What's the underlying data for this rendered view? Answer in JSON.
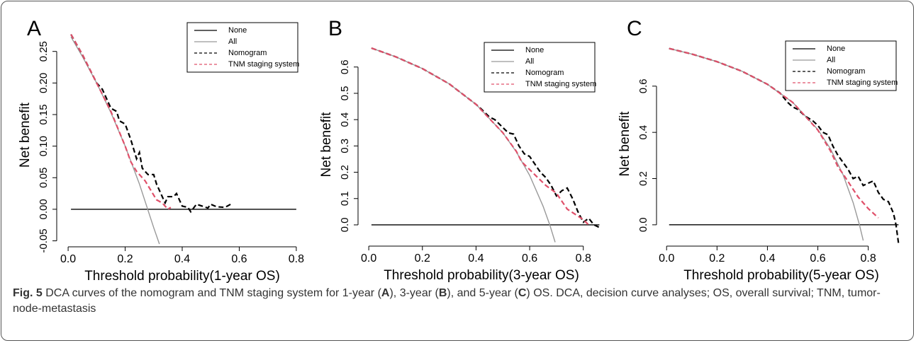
{
  "chart_data": [
    {
      "type": "line",
      "panel": "A",
      "xlabel": "Threshold probability(1-year OS)",
      "ylabel": "Net benefit",
      "xlim": [
        -0.04,
        0.84
      ],
      "ylim": [
        -0.055,
        0.29
      ],
      "xticks": [
        {
          "value": 0,
          "label": "0.0"
        },
        0.2,
        0.4,
        0.6,
        0.8
      ],
      "yticks": [
        -0.05,
        {
          "value": 0,
          "label": "0.00"
        },
        0.05,
        {
          "value": 0.1,
          "label": "0.10"
        },
        0.15,
        {
          "value": 0.2,
          "label": "0.20"
        },
        0.25
      ],
      "series": [
        {
          "name": "None",
          "color": "#000000",
          "dash": false,
          "x": [
            0.01,
            0.8
          ],
          "values": [
            0,
            0
          ]
        },
        {
          "name": "All",
          "color": "#999999",
          "dash": false,
          "x": [
            0.01,
            0.05,
            0.1,
            0.15,
            0.2,
            0.25,
            0.3,
            0.32
          ],
          "values": [
            0.273,
            0.242,
            0.2,
            0.153,
            0.1,
            0.04,
            -0.029,
            -0.055
          ]
        },
        {
          "name": "Nomogram",
          "color": "#000000",
          "dash": true,
          "x": [
            0.01,
            0.05,
            0.1,
            0.12,
            0.15,
            0.17,
            0.18,
            0.2,
            0.22,
            0.24,
            0.25,
            0.26,
            0.28,
            0.3,
            0.31,
            0.33,
            0.34,
            0.35,
            0.37,
            0.38,
            0.4,
            0.42,
            0.43,
            0.45,
            0.47,
            0.49,
            0.5,
            0.52,
            0.55,
            0.57
          ],
          "values": [
            0.277,
            0.245,
            0.2,
            0.19,
            0.16,
            0.155,
            0.14,
            0.135,
            0.11,
            0.08,
            0.09,
            0.065,
            0.055,
            0.055,
            0.04,
            0.02,
            0.01,
            0.02,
            0.02,
            0.025,
            0.005,
            0.003,
            -0.004,
            0.008,
            0.005,
            0.002,
            0.008,
            0.004,
            0.003,
            0.008
          ]
        },
        {
          "name": "TNM staging system",
          "color": "#e0506a",
          "dash": true,
          "x": [
            0.01,
            0.05,
            0.1,
            0.15,
            0.2,
            0.22,
            0.24,
            0.27,
            0.29,
            0.31,
            0.33,
            0.35,
            0.36
          ],
          "values": [
            0.277,
            0.245,
            0.2,
            0.155,
            0.1,
            0.075,
            0.06,
            0.045,
            0.03,
            0.015,
            0.01,
            0.0,
            0.003
          ]
        }
      ]
    },
    {
      "type": "line",
      "panel": "B",
      "xlabel": "Threshold probability(3-year OS)",
      "ylabel": "Net benefit",
      "xlim": [
        -0.04,
        0.88
      ],
      "ylim": [
        -0.07,
        0.68
      ],
      "xticks": [
        {
          "value": 0,
          "label": "0.0"
        },
        0.2,
        0.4,
        0.6,
        0.8
      ],
      "yticks": [
        {
          "value": 0,
          "label": "0.0"
        },
        0.1,
        0.2,
        0.3,
        0.4,
        0.5,
        0.6
      ],
      "series": [
        {
          "name": "None",
          "color": "#000000",
          "dash": false,
          "x": [
            0.01,
            0.86
          ],
          "values": [
            0,
            0
          ]
        },
        {
          "name": "All",
          "color": "#999999",
          "dash": false,
          "x": [
            0.01,
            0.1,
            0.2,
            0.3,
            0.4,
            0.5,
            0.55,
            0.6,
            0.65,
            0.675,
            0.695
          ],
          "values": [
            0.672,
            0.639,
            0.594,
            0.536,
            0.458,
            0.35,
            0.278,
            0.188,
            0.071,
            0.0,
            -0.066
          ]
        },
        {
          "name": "Nomogram",
          "color": "#000000",
          "dash": true,
          "x": [
            0.01,
            0.1,
            0.2,
            0.3,
            0.4,
            0.42,
            0.45,
            0.47,
            0.5,
            0.52,
            0.54,
            0.56,
            0.58,
            0.6,
            0.62,
            0.64,
            0.66,
            0.68,
            0.7,
            0.72,
            0.74,
            0.76,
            0.78,
            0.8,
            0.82,
            0.84,
            0.86
          ],
          "values": [
            0.672,
            0.639,
            0.594,
            0.536,
            0.458,
            0.44,
            0.41,
            0.4,
            0.37,
            0.35,
            0.345,
            0.3,
            0.27,
            0.26,
            0.23,
            0.2,
            0.18,
            0.15,
            0.11,
            0.13,
            0.14,
            0.1,
            0.05,
            0.01,
            0.025,
            0.0,
            -0.01
          ]
        },
        {
          "name": "TNM staging system",
          "color": "#e0506a",
          "dash": true,
          "x": [
            0.01,
            0.1,
            0.2,
            0.3,
            0.4,
            0.5,
            0.55,
            0.57,
            0.6,
            0.63,
            0.66,
            0.7,
            0.72,
            0.74,
            0.77,
            0.8,
            0.82
          ],
          "values": [
            0.672,
            0.639,
            0.594,
            0.536,
            0.458,
            0.35,
            0.28,
            0.24,
            0.21,
            0.18,
            0.15,
            0.12,
            0.09,
            0.06,
            0.04,
            0.02,
            0.0
          ]
        }
      ]
    },
    {
      "type": "line",
      "panel": "C",
      "xlabel": "Threshold probability(5-year OS)",
      "ylabel": "Net benefit",
      "xlim": [
        -0.04,
        0.95
      ],
      "ylim": [
        -0.08,
        0.78
      ],
      "xticks": [
        {
          "value": 0,
          "label": "0.0"
        },
        0.2,
        0.4,
        0.6,
        0.8
      ],
      "yticks": [
        {
          "value": 0,
          "label": "0.0"
        },
        0.2,
        0.4,
        0.6
      ],
      "series": [
        {
          "name": "None",
          "color": "#000000",
          "dash": false,
          "x": [
            0.01,
            0.92
          ],
          "values": [
            0,
            0
          ]
        },
        {
          "name": "All",
          "color": "#999999",
          "dash": false,
          "x": [
            0.01,
            0.1,
            0.2,
            0.3,
            0.4,
            0.5,
            0.6,
            0.65,
            0.7,
            0.74,
            0.765,
            0.78
          ],
          "values": [
            0.763,
            0.739,
            0.706,
            0.664,
            0.608,
            0.53,
            0.412,
            0.329,
            0.217,
            0.096,
            0.0,
            -0.068
          ]
        },
        {
          "name": "Nomogram",
          "color": "#000000",
          "dash": true,
          "x": [
            0.01,
            0.1,
            0.2,
            0.3,
            0.4,
            0.45,
            0.48,
            0.5,
            0.52,
            0.55,
            0.58,
            0.6,
            0.62,
            0.64,
            0.66,
            0.68,
            0.7,
            0.72,
            0.74,
            0.76,
            0.78,
            0.8,
            0.82,
            0.84,
            0.86,
            0.88,
            0.9,
            0.91,
            0.92
          ],
          "values": [
            0.763,
            0.739,
            0.706,
            0.664,
            0.608,
            0.57,
            0.53,
            0.51,
            0.5,
            0.47,
            0.45,
            0.43,
            0.4,
            0.39,
            0.34,
            0.3,
            0.27,
            0.24,
            0.2,
            0.21,
            0.17,
            0.18,
            0.19,
            0.14,
            0.11,
            0.1,
            0.05,
            0.0,
            -0.08
          ]
        },
        {
          "name": "TNM staging system",
          "color": "#e0506a",
          "dash": true,
          "x": [
            0.01,
            0.1,
            0.2,
            0.3,
            0.4,
            0.5,
            0.6,
            0.65,
            0.68,
            0.7,
            0.73,
            0.76,
            0.8,
            0.84
          ],
          "values": [
            0.763,
            0.739,
            0.706,
            0.664,
            0.608,
            0.53,
            0.41,
            0.32,
            0.25,
            0.22,
            0.17,
            0.12,
            0.07,
            0.03
          ]
        }
      ]
    }
  ],
  "caption": {
    "label": "Fig. 5",
    "parts": [
      "DCA curves of the nomogram and TNM staging system for 1-year (",
      "A",
      "), 3-year (",
      "B",
      "), and 5-year (",
      "C",
      ") OS. DCA, decision curve analyses; OS, overall survival; TNM, tumor-node-metastasis"
    ]
  }
}
